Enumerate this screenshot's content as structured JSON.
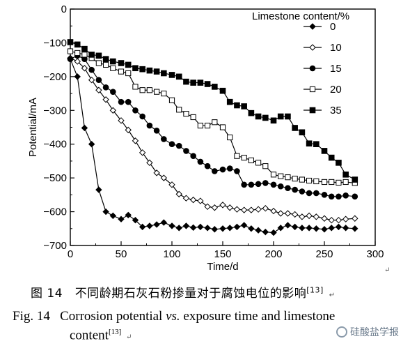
{
  "chart_data": {
    "type": "line",
    "title": "",
    "xlabel": "Time/d",
    "ylabel": "Potential/mA",
    "xlim": [
      0,
      300
    ],
    "ylim": [
      -700,
      0
    ],
    "xticks": [
      0,
      50,
      100,
      150,
      200,
      250,
      300
    ],
    "yticks": [
      0,
      -100,
      -200,
      -300,
      -400,
      -500,
      -600,
      -700
    ],
    "legend_title": "Limestone content/%",
    "legend_position": "top-right",
    "grid": false,
    "series": [
      {
        "name": "0",
        "marker": "filled-diamond",
        "x": [
          0,
          7,
          14,
          21,
          28,
          35,
          42,
          50,
          57,
          64,
          71,
          78,
          85,
          92,
          100,
          107,
          114,
          121,
          128,
          135,
          142,
          150,
          157,
          164,
          171,
          178,
          185,
          192,
          200,
          207,
          214,
          221,
          228,
          235,
          242,
          250,
          257,
          264,
          271,
          280
        ],
        "y": [
          -148,
          -200,
          -352,
          -400,
          -535,
          -600,
          -612,
          -622,
          -610,
          -625,
          -645,
          -642,
          -638,
          -632,
          -642,
          -648,
          -642,
          -647,
          -645,
          -648,
          -652,
          -650,
          -648,
          -645,
          -640,
          -650,
          -655,
          -660,
          -662,
          -648,
          -640,
          -645,
          -648,
          -648,
          -650,
          -652,
          -648,
          -645,
          -648,
          -650
        ]
      },
      {
        "name": "10",
        "marker": "open-diamond",
        "x": [
          0,
          7,
          14,
          21,
          28,
          35,
          42,
          50,
          57,
          64,
          71,
          78,
          85,
          92,
          100,
          107,
          114,
          121,
          128,
          135,
          142,
          150,
          157,
          164,
          171,
          178,
          185,
          192,
          200,
          207,
          214,
          221,
          228,
          235,
          242,
          250,
          257,
          264,
          271,
          280
        ],
        "y": [
          -145,
          -155,
          -175,
          -210,
          -240,
          -268,
          -300,
          -330,
          -358,
          -390,
          -425,
          -455,
          -485,
          -500,
          -520,
          -548,
          -560,
          -565,
          -568,
          -585,
          -588,
          -580,
          -588,
          -593,
          -595,
          -595,
          -593,
          -590,
          -598,
          -605,
          -605,
          -608,
          -615,
          -612,
          -615,
          -620,
          -625,
          -625,
          -622,
          -620
        ]
      },
      {
        "name": "15",
        "marker": "filled-circle",
        "x": [
          0,
          7,
          14,
          21,
          28,
          35,
          42,
          50,
          57,
          64,
          71,
          78,
          85,
          92,
          100,
          107,
          114,
          121,
          128,
          135,
          142,
          150,
          157,
          164,
          171,
          178,
          185,
          192,
          200,
          207,
          214,
          221,
          228,
          235,
          242,
          250,
          257,
          264,
          271,
          280
        ],
        "y": [
          -148,
          -138,
          -148,
          -180,
          -210,
          -232,
          -245,
          -275,
          -275,
          -300,
          -318,
          -345,
          -360,
          -385,
          -400,
          -405,
          -420,
          -435,
          -452,
          -465,
          -480,
          -475,
          -472,
          -480,
          -520,
          -520,
          -518,
          -515,
          -520,
          -525,
          -530,
          -535,
          -540,
          -545,
          -545,
          -550,
          -555,
          -555,
          -552,
          -555
        ]
      },
      {
        "name": "20",
        "marker": "open-square",
        "x": [
          0,
          7,
          14,
          21,
          28,
          35,
          42,
          50,
          57,
          64,
          71,
          78,
          85,
          92,
          100,
          107,
          114,
          121,
          128,
          135,
          142,
          150,
          157,
          164,
          171,
          178,
          185,
          192,
          200,
          207,
          214,
          221,
          228,
          235,
          242,
          250,
          257,
          264,
          271,
          280
        ],
        "y": [
          -125,
          -130,
          -135,
          -145,
          -160,
          -165,
          -175,
          -185,
          -190,
          -230,
          -240,
          -240,
          -245,
          -250,
          -270,
          -298,
          -310,
          -320,
          -345,
          -345,
          -335,
          -350,
          -380,
          -435,
          -440,
          -448,
          -455,
          -465,
          -490,
          -495,
          -498,
          -502,
          -505,
          -508,
          -510,
          -512,
          -512,
          -514,
          -512,
          -515
        ]
      },
      {
        "name": "35",
        "marker": "filled-square",
        "x": [
          0,
          7,
          14,
          21,
          28,
          35,
          42,
          50,
          57,
          64,
          71,
          78,
          85,
          92,
          100,
          107,
          114,
          121,
          128,
          135,
          142,
          150,
          157,
          164,
          171,
          178,
          185,
          192,
          200,
          207,
          214,
          221,
          228,
          235,
          242,
          250,
          257,
          264,
          271,
          280
        ],
        "y": [
          -98,
          -105,
          -118,
          -135,
          -138,
          -148,
          -155,
          -160,
          -165,
          -175,
          -178,
          -182,
          -185,
          -190,
          -195,
          -200,
          -215,
          -218,
          -218,
          -222,
          -230,
          -242,
          -275,
          -285,
          -288,
          -308,
          -318,
          -322,
          -330,
          -318,
          -318,
          -352,
          -365,
          -398,
          -400,
          -420,
          -440,
          -455,
          -490,
          -505
        ]
      }
    ]
  },
  "caption": {
    "cn_label": "图 14",
    "cn_text": "不同龄期石灰石粉掺量对于腐蚀电位的影响",
    "cn_ref": "[13]",
    "en_label": "Fig. 14",
    "en_text_1": "Corrosion potential ",
    "en_vs": "vs.",
    "en_text_2": " exposure time and limestone",
    "en_text_3": "content",
    "en_ref": "[13]",
    "return_mark": "↵"
  },
  "watermark": {
    "text": "硅酸盐学报",
    "icon": "wechat-icon"
  }
}
